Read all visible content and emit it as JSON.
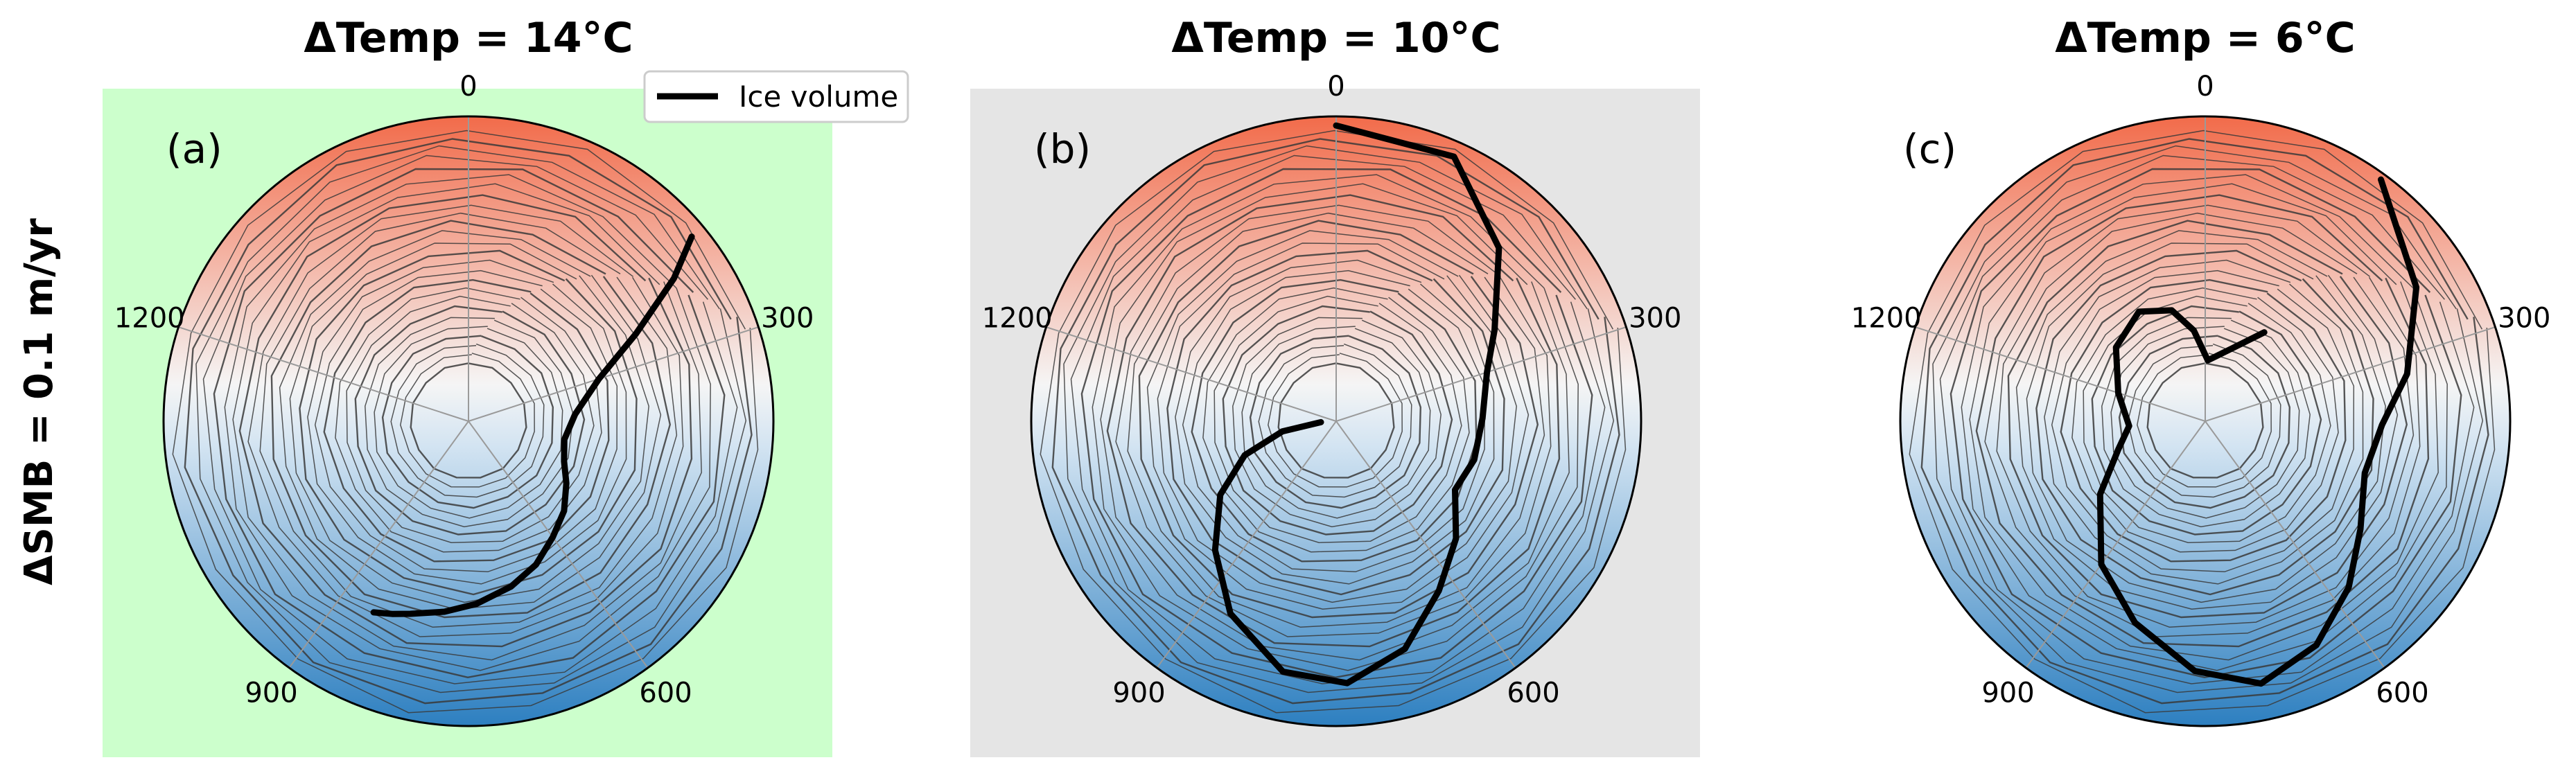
{
  "figure": {
    "row_label": "ΔSMB = 0.1 m/yr",
    "legend": {
      "label": "Ice volume",
      "placement": "upper-right of panel (a)"
    }
  },
  "colors": {
    "warm": "#f26b4a",
    "cold": "#2d7fc0",
    "center": "#f5f5f5",
    "panel_a_bg": "#ccffcc",
    "panel_b_bg": "#e5e5e5",
    "trajectory": "#000000",
    "contour": "#3a3a3a",
    "spoke": "#9a9a9a"
  },
  "chart_data": [
    {
      "type": "polar-line",
      "panel_label": "(a)",
      "title": "ΔTemp = 14°C",
      "angular_ticks": [
        "0",
        "300",
        "600",
        "900",
        "1200"
      ],
      "angular_range": [
        0,
        1500
      ],
      "background": "green",
      "series": [
        {
          "name": "Ice volume",
          "points": [
            [
              210,
              0.95
            ],
            [
              230,
              0.82
            ],
            [
              260,
              0.62
            ],
            [
              300,
              0.45
            ],
            [
              360,
              0.35
            ],
            [
              420,
              0.32
            ],
            [
              470,
              0.34
            ],
            [
              510,
              0.38
            ],
            [
              555,
              0.43
            ],
            [
              600,
              0.47
            ],
            [
              645,
              0.52
            ],
            [
              690,
              0.56
            ],
            [
              740,
              0.6
            ],
            [
              780,
              0.63
            ],
            [
              820,
              0.66
            ],
            [
              840,
              0.68
            ],
            [
              860,
              0.7
            ]
          ]
        }
      ]
    },
    {
      "type": "polar-line",
      "panel_label": "(b)",
      "title": "ΔTemp = 10°C",
      "angular_ticks": [
        "0",
        "300",
        "600",
        "900",
        "1200"
      ],
      "angular_range": [
        0,
        1500
      ],
      "background": "grey",
      "series": [
        {
          "name": "Ice volume",
          "points": [
            [
              0,
              0.97
            ],
            [
              100,
              0.95
            ],
            [
              180,
              0.78
            ],
            [
              250,
              0.6
            ],
            [
              300,
              0.52
            ],
            [
              370,
              0.48
            ],
            [
              440,
              0.47
            ],
            [
              500,
              0.45
            ],
            [
              560,
              0.55
            ],
            [
              620,
              0.65
            ],
            [
              680,
              0.78
            ],
            [
              740,
              0.86
            ],
            [
              800,
              0.84
            ],
            [
              870,
              0.72
            ],
            [
              930,
              0.58
            ],
            [
              990,
              0.45
            ],
            [
              1040,
              0.32
            ],
            [
              1080,
              0.18
            ],
            [
              1110,
              0.05
            ]
          ]
        }
      ]
    },
    {
      "type": "polar-line",
      "panel_label": "(c)",
      "title": "ΔTemp = 6°C",
      "angular_ticks": [
        "0",
        "300",
        "600",
        "900",
        "1200"
      ],
      "angular_range": [
        0,
        1500
      ],
      "background": "white",
      "series": [
        {
          "name": "Ice volume",
          "points": [
            [
              150,
              0.98
            ],
            [
              240,
              0.82
            ],
            [
              320,
              0.68
            ],
            [
              380,
              0.58
            ],
            [
              450,
              0.55
            ],
            [
              520,
              0.62
            ],
            [
              580,
              0.72
            ],
            [
              640,
              0.82
            ],
            [
              700,
              0.88
            ],
            [
              760,
              0.82
            ],
            [
              830,
              0.7
            ],
            [
              900,
              0.58
            ],
            [
              980,
              0.42
            ],
            [
              1050,
              0.3
            ],
            [
              1110,
              0.25
            ],
            [
              1200,
              0.3
            ],
            [
              1290,
              0.38
            ],
            [
              1370,
              0.42
            ],
            [
              1430,
              0.38
            ],
            [
              1470,
              0.3
            ],
            [
              10,
              0.2
            ],
            [
              80,
              0.25
            ],
            [
              140,
              0.35
            ]
          ]
        }
      ]
    }
  ]
}
